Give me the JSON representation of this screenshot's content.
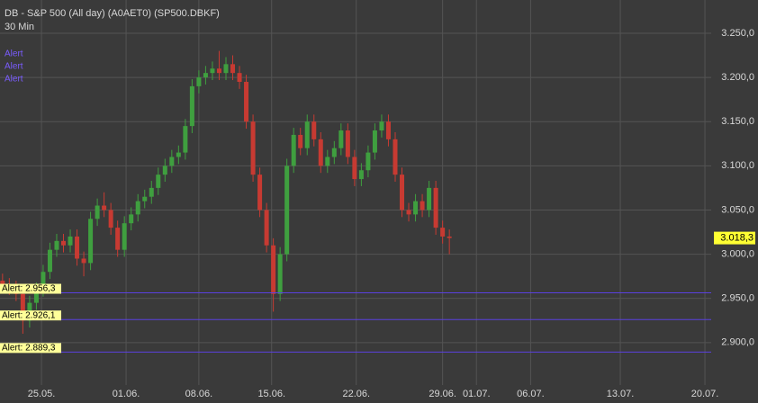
{
  "chart_data": {
    "type": "candlestick",
    "title": "DB - S&P 500 (All day) (A0AET0) (SP500.DBKF)",
    "subtitle": "30 Min",
    "alert_labels": [
      "Alert",
      "Alert",
      "Alert"
    ],
    "up_color": "#3f9f3f",
    "down_color": "#c73a32",
    "alert_color": "#5a40e0",
    "grid": true,
    "x": [
      -2.3,
      -1.9,
      -1.5,
      -1.1,
      -0.7,
      -0.3,
      0.1,
      0.5,
      0.9,
      1.3,
      1.7,
      2.1,
      2.5,
      2.9,
      3.3,
      3.7,
      4.1,
      4.5,
      4.9,
      5.3,
      5.7,
      6.1,
      6.5,
      6.9,
      7.3,
      7.7,
      8.1,
      8.5,
      8.9,
      9.3,
      9.7,
      10.1,
      10.5,
      10.9,
      11.3,
      11.7,
      12.1,
      12.5,
      12.9,
      13.3,
      13.7,
      14.1,
      14.5,
      14.9,
      15.3,
      15.7,
      16.1,
      16.5,
      16.9,
      17.3,
      17.7,
      18.1,
      18.5,
      18.9,
      19.3,
      19.7,
      20.1,
      20.5,
      20.9,
      21.3,
      21.7,
      22.1,
      22.5,
      22.9,
      23.3,
      23.7,
      24.1
    ],
    "open": [
      2970,
      2965,
      2962,
      2955,
      2925,
      2945,
      2960,
      2980,
      3005,
      3015,
      3010,
      3020,
      2995,
      2990,
      3040,
      3055,
      3050,
      3030,
      3005,
      3035,
      3045,
      3060,
      3065,
      3075,
      3090,
      3100,
      3110,
      3115,
      3145,
      3190,
      3200,
      3205,
      3210,
      3205,
      3215,
      3205,
      3195,
      3150,
      3090,
      3050,
      3010,
      2955,
      3000,
      3100,
      3135,
      3120,
      3150,
      3130,
      3100,
      3110,
      3120,
      3140,
      3110,
      3085,
      3095,
      3115,
      3140,
      3150,
      3130,
      3090,
      3050,
      3045,
      3060,
      3050,
      3075,
      3030,
      3020
    ],
    "high": [
      2978,
      2973,
      2970,
      2963,
      2953,
      2968,
      2988,
      3013,
      3023,
      3023,
      3028,
      3028,
      3003,
      3048,
      3063,
      3070,
      3058,
      3038,
      3043,
      3053,
      3068,
      3073,
      3083,
      3098,
      3108,
      3118,
      3123,
      3153,
      3198,
      3208,
      3213,
      3218,
      3230,
      3223,
      3225,
      3213,
      3203,
      3158,
      3098,
      3058,
      3018,
      3008,
      3108,
      3143,
      3143,
      3158,
      3158,
      3138,
      3118,
      3128,
      3148,
      3148,
      3118,
      3103,
      3123,
      3148,
      3158,
      3158,
      3138,
      3098,
      3058,
      3068,
      3068,
      3083,
      3083,
      3038,
      3028
    ],
    "low": [
      2957,
      2954,
      2947,
      2910,
      2917,
      2937,
      2952,
      2972,
      2997,
      3002,
      3002,
      2987,
      2975,
      2982,
      3032,
      3042,
      3022,
      2997,
      2997,
      3027,
      3037,
      3052,
      3057,
      3067,
      3082,
      3092,
      3102,
      3107,
      3137,
      3182,
      3192,
      3197,
      3197,
      3197,
      3197,
      3187,
      3142,
      3082,
      3042,
      3002,
      2935,
      2947,
      2992,
      3092,
      3112,
      3112,
      3122,
      3092,
      3092,
      3102,
      3112,
      3102,
      3077,
      3077,
      3087,
      3107,
      3132,
      3122,
      3082,
      3042,
      3037,
      3037,
      3042,
      3042,
      3022,
      3012,
      3000
    ],
    "close": [
      2965,
      2962,
      2955,
      2925,
      2945,
      2960,
      2980,
      3005,
      3015,
      3010,
      3020,
      2995,
      2990,
      3040,
      3055,
      3050,
      3030,
      3005,
      3035,
      3045,
      3060,
      3065,
      3075,
      3090,
      3100,
      3110,
      3115,
      3145,
      3190,
      3200,
      3205,
      3210,
      3205,
      3215,
      3205,
      3195,
      3150,
      3090,
      3050,
      3010,
      2955,
      3000,
      3100,
      3135,
      3120,
      3150,
      3130,
      3100,
      3110,
      3120,
      3140,
      3110,
      3085,
      3095,
      3115,
      3140,
      3150,
      3130,
      3090,
      3050,
      3045,
      3060,
      3050,
      3075,
      3030,
      3020,
      3018.3
    ],
    "last_price_label": "3.018,3",
    "alerts": [
      {
        "value": 2956.3,
        "label": "Alert: 2.956,3"
      },
      {
        "value": 2926.1,
        "label": "Alert: 2.926,1"
      },
      {
        "value": 2889.3,
        "label": "Alert: 2.889,3"
      }
    ],
    "xlim": [
      -2.45,
      39.57
    ],
    "ylim": [
      2852,
      3287.6
    ],
    "xticks": [
      {
        "value": 0,
        "label": "25.05."
      },
      {
        "value": 5,
        "label": "01.06."
      },
      {
        "value": 9.3,
        "label": "08.06."
      },
      {
        "value": 13.6,
        "label": "15.06."
      },
      {
        "value": 18.6,
        "label": "22.06."
      },
      {
        "value": 23.7,
        "label": "29.06."
      },
      {
        "value": 25.7,
        "label": "01.07."
      },
      {
        "value": 28.9,
        "label": "06.07."
      },
      {
        "value": 34.2,
        "label": "13.07."
      },
      {
        "value": 39.2,
        "label": "20.07."
      }
    ],
    "yticks": [
      {
        "value": 2900,
        "label": "2.900,0"
      },
      {
        "value": 2950,
        "label": "2.950,0"
      },
      {
        "value": 3000,
        "label": "3.000,0"
      },
      {
        "value": 3050,
        "label": "3.050,0"
      },
      {
        "value": 3100,
        "label": "3.100,0"
      },
      {
        "value": 3150,
        "label": "3.150,0"
      },
      {
        "value": 3200,
        "label": "3.200,0"
      },
      {
        "value": 3250,
        "label": "3.250,0"
      }
    ]
  }
}
